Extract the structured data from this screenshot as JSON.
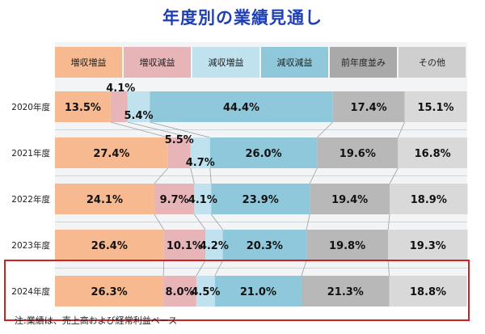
{
  "title": "年度別の業績見通し",
  "footnote": "注:業績は、売上高および経常利益ベース",
  "colors": {
    "title": "#1f3fb5",
    "highlight_border": "#d21f1f",
    "connector": "#9aa0a6",
    "divider": "#cfd4d8"
  },
  "chart_data": {
    "type": "bar",
    "orientation": "horizontal",
    "stacked": "100%",
    "title": "年度別の業績見通し",
    "categories": [
      "2020年度",
      "2021年度",
      "2022年度",
      "2023年度",
      "2024年度"
    ],
    "highlighted_category": "2024年度",
    "legend_position": "top",
    "series": [
      {
        "name": "増収増益",
        "color": "#f7b98f",
        "legend_color": "#f7b98f",
        "values": [
          13.5,
          27.4,
          24.1,
          26.4,
          26.3
        ],
        "labels": [
          "13.5%",
          "27.4%",
          "24.1%",
          "26.4%",
          "26.3%"
        ]
      },
      {
        "name": "増収減益",
        "color": "#e7b4b8",
        "legend_color": "#e7b4b8",
        "values": [
          4.1,
          5.5,
          9.7,
          10.1,
          8.0
        ],
        "labels": [
          "4.1%",
          "5.5%",
          "9.7%",
          "10.1%",
          "8.0%"
        ]
      },
      {
        "name": "減収増益",
        "color": "#bfe2ee",
        "legend_color": "#bfe2ee",
        "values": [
          5.4,
          4.7,
          4.1,
          4.2,
          4.5
        ],
        "labels": [
          "5.4%",
          "4.7%",
          "4.1%",
          "4.2%",
          "4.5%"
        ]
      },
      {
        "name": "減収減益",
        "color": "#8fc8db",
        "legend_color": "#8fc8db",
        "values": [
          44.4,
          26.0,
          23.9,
          20.3,
          21.0
        ],
        "labels": [
          "44.4%",
          "26.0%",
          "23.9%",
          "20.3%",
          "21.0%"
        ]
      },
      {
        "name": "前年度並み",
        "color": "#b8b8b8",
        "legend_color": "#a9a9a9",
        "values": [
          17.4,
          19.6,
          19.4,
          19.8,
          21.3
        ],
        "labels": [
          "17.4%",
          "19.6%",
          "19.4%",
          "19.8%",
          "21.3%"
        ]
      },
      {
        "name": "その他",
        "color": "#d9d9d9",
        "legend_color": "#cfcfcf",
        "values": [
          15.1,
          16.8,
          18.9,
          19.3,
          18.8
        ],
        "labels": [
          "15.1%",
          "16.8%",
          "18.9%",
          "19.3%",
          "18.8%"
        ]
      }
    ]
  }
}
